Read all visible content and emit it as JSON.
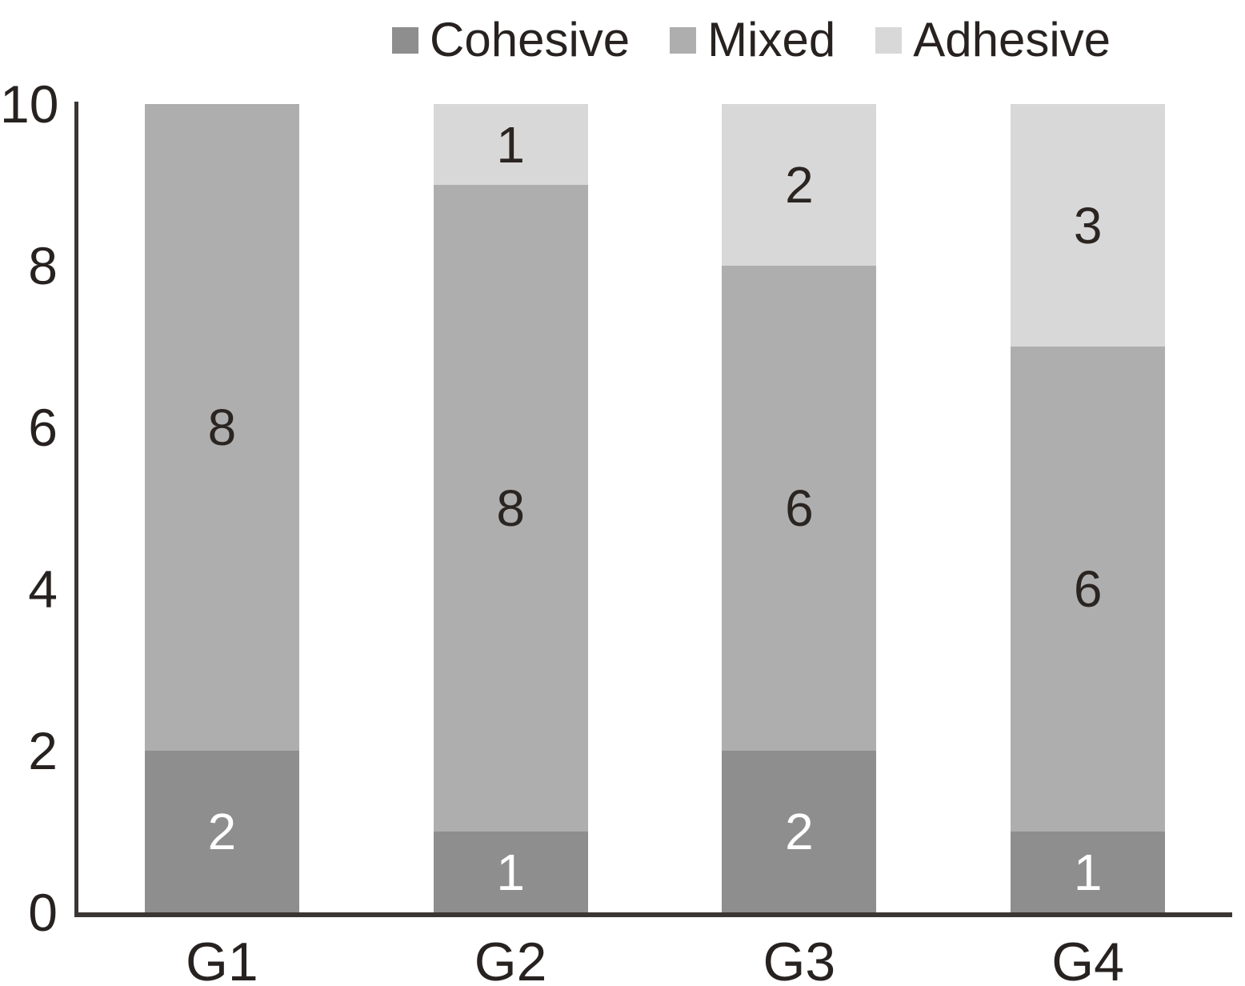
{
  "chart_data": {
    "type": "bar",
    "stacked": true,
    "title": "",
    "xlabel": "",
    "ylabel": "",
    "categories": [
      "G1",
      "G2",
      "G3",
      "G4"
    ],
    "series": [
      {
        "name": "Cohesive",
        "values": [
          2,
          1,
          2,
          1
        ],
        "color": "#8e8e8e",
        "label_color": "#ffffff"
      },
      {
        "name": "Mixed",
        "values": [
          8,
          8,
          6,
          6
        ],
        "color": "#aeaeae",
        "label_color": "#2b2522"
      },
      {
        "name": "Adhesive",
        "values": [
          0,
          1,
          2,
          3
        ],
        "color": "#d8d8d8",
        "label_color": "#2b2522"
      }
    ],
    "ylim": [
      0,
      10
    ],
    "yticks": [
      0,
      2,
      4,
      6,
      8,
      10
    ],
    "grid": false,
    "legend_position": "top",
    "legend_labels": [
      "Cohesive",
      "Mixed",
      "Adhesive"
    ],
    "axis_color": "#3a3633",
    "text_color": "#272220",
    "background": "#ffffff"
  }
}
